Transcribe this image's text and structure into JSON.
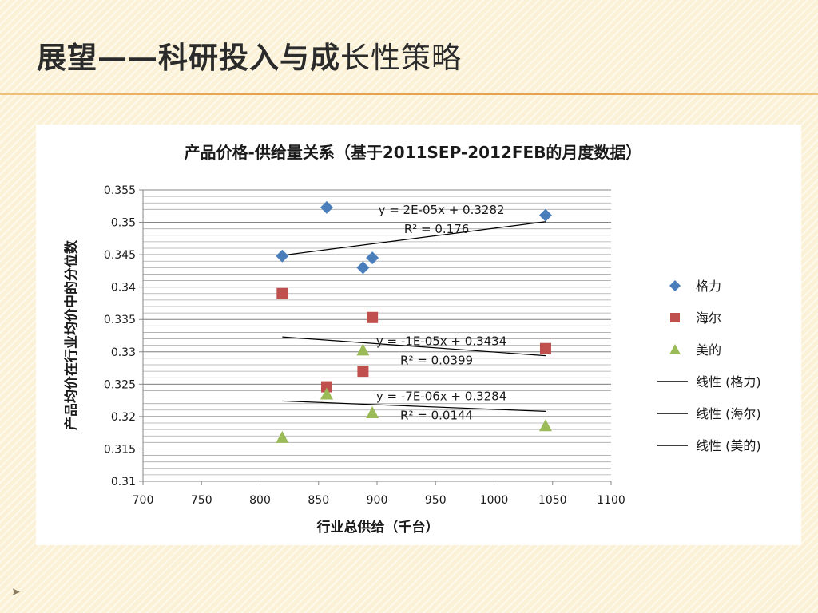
{
  "slide": {
    "title_bold": "展望——科研投入与成",
    "title_normal": "长性策略"
  },
  "chart_data": {
    "type": "scatter",
    "title": "产品价格-供给量关系（基于2011SEP-2012FEB的月度数据）",
    "xlabel": "行业总供给（千台）",
    "ylabel": "产品均价在行业均价中的分位数",
    "xlim": [
      700,
      1100
    ],
    "ylim": [
      0.31,
      0.355
    ],
    "x_ticks": [
      700,
      750,
      800,
      850,
      900,
      950,
      1000,
      1050,
      1100
    ],
    "x_tick_labels": [
      "700",
      "750",
      "800",
      "850",
      "900",
      "950",
      "1000",
      "1050",
      "1100"
    ],
    "y_ticks": [
      0.31,
      0.315,
      0.32,
      0.325,
      0.33,
      0.335,
      0.34,
      0.345,
      0.35,
      0.355
    ],
    "y_tick_labels": [
      "0.31",
      "0.315",
      "0.32",
      "0.325",
      "0.33",
      "0.335",
      "0.34",
      "0.345",
      "0.35",
      "0.355"
    ],
    "grid": true,
    "legend_position": "right",
    "series": [
      {
        "name": "格力",
        "marker": "diamond",
        "color": "#4a7ebb",
        "points": [
          [
            819,
            0.3448
          ],
          [
            857,
            0.3523
          ],
          [
            888,
            0.343
          ],
          [
            896,
            0.3445
          ],
          [
            1044,
            0.3511
          ]
        ]
      },
      {
        "name": "海尔",
        "marker": "square",
        "color": "#c0504d",
        "points": [
          [
            819,
            0.339
          ],
          [
            857,
            0.3246
          ],
          [
            888,
            0.327
          ],
          [
            896,
            0.3353
          ],
          [
            1044,
            0.3305
          ]
        ]
      },
      {
        "name": "美的",
        "marker": "triangle",
        "color": "#9bbb59",
        "points": [
          [
            819,
            0.3168
          ],
          [
            857,
            0.3235
          ],
          [
            888,
            0.3303
          ],
          [
            896,
            0.3206
          ],
          [
            1044,
            0.3186
          ]
        ]
      }
    ],
    "trendlines": [
      {
        "name": "线性 (格力)",
        "x": [
          819,
          1044
        ],
        "y": [
          0.3449,
          0.3501
        ],
        "equation": "y = 2E-05x + 0.3282",
        "r2": "R² = 0.176"
      },
      {
        "name": "线性 (海尔)",
        "x": [
          819,
          1044
        ],
        "y": [
          0.3323,
          0.3294
        ],
        "equation": "y = -1E-05x + 0.3434",
        "r2": "R² = 0.0399"
      },
      {
        "name": "线性 (美的)",
        "x": [
          819,
          1044
        ],
        "y": [
          0.3224,
          0.3208
        ],
        "equation": "y = -7E-06x + 0.3284",
        "r2": "R² = 0.0144"
      }
    ]
  },
  "colors": {
    "trendline": "#000000",
    "gridline": "#868686",
    "axis": "#868686"
  }
}
